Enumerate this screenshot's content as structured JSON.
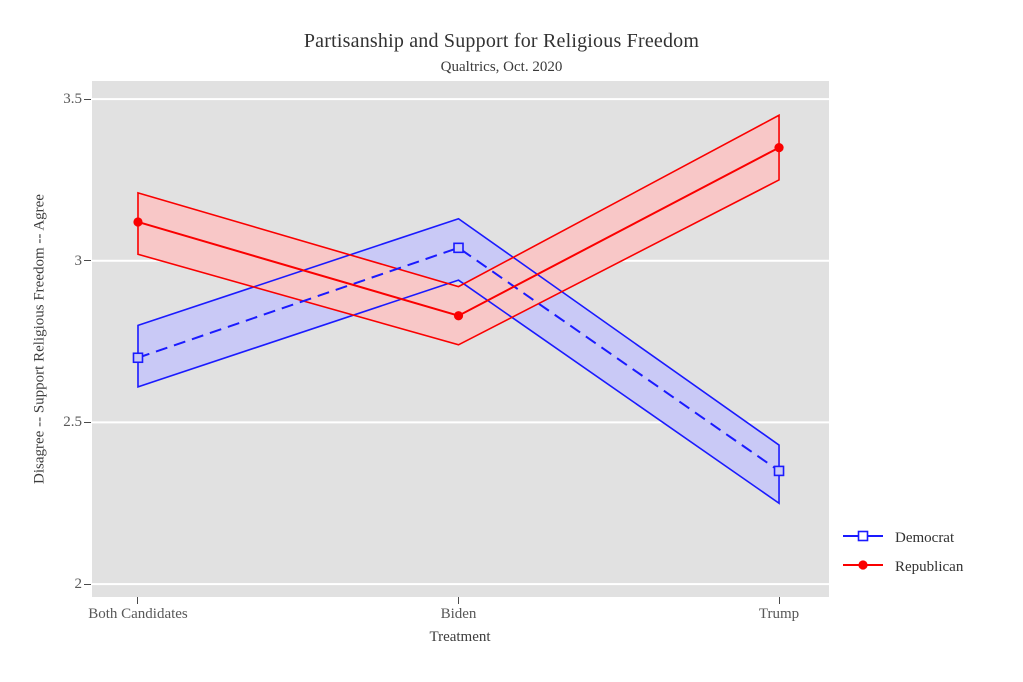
{
  "chart_data": {
    "type": "line",
    "title": "Partisanship and Support for Religious Freedom",
    "subtitle": "Qualtrics, Oct. 2020",
    "xlabel": "Treatment",
    "ylabel": "Disagree  --  Support Religious Freedom  --  Agree",
    "categories": [
      "Both Candidates",
      "Biden",
      "Trump"
    ],
    "ylim": [
      1.96,
      3.556
    ],
    "yticks": [
      2,
      2.5,
      3,
      3.5
    ],
    "grid": true,
    "legend_position": "right-outside",
    "series": [
      {
        "name": "Democrat",
        "values": [
          2.7,
          3.04,
          2.35
        ],
        "ci_lower": [
          2.61,
          2.94,
          2.25
        ],
        "ci_upper": [
          2.8,
          3.13,
          2.43
        ],
        "color": "#1a1aff",
        "band_fill": "#c9c9f6",
        "line_style": "dashed",
        "marker": "open-square"
      },
      {
        "name": "Republican",
        "values": [
          3.12,
          2.83,
          3.35
        ],
        "ci_lower": [
          3.02,
          2.74,
          3.25
        ],
        "ci_upper": [
          3.21,
          2.92,
          3.45
        ],
        "color": "#fa0000",
        "band_fill": "#f8c7c7",
        "line_style": "solid",
        "marker": "filled-circle"
      }
    ]
  },
  "colors": {
    "plot_background": "#e1e1e1",
    "gridline": "#ffffff",
    "title_text": "#323232",
    "tick_text": "#585858"
  }
}
